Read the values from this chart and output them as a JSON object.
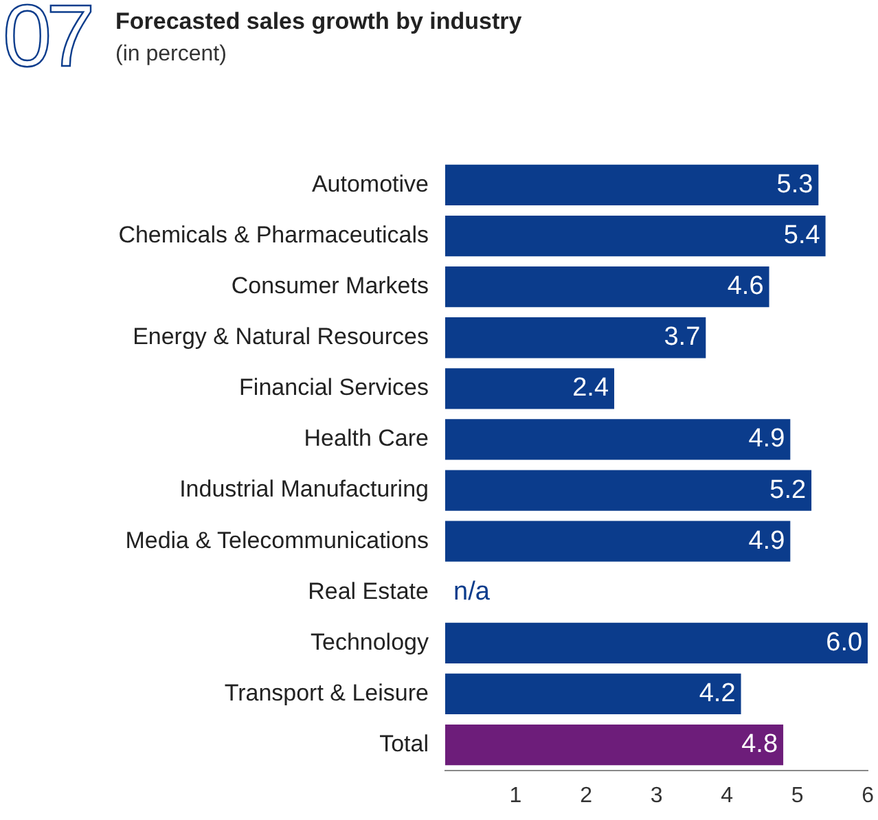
{
  "chart_data": {
    "type": "bar",
    "orientation": "horizontal",
    "title": "Forecasted sales growth by industry",
    "subtitle": "(in percent)",
    "annotations": [
      "07"
    ],
    "categories": [
      "Automotive",
      "Chemicals & Pharmaceuticals",
      "Consumer Markets",
      "Energy & Natural Resources",
      "Financial Services",
      "Health Care",
      "Industrial Manufacturing",
      "Media & Telecommunications",
      "Real Estate",
      "Technology",
      "Transport & Leisure",
      "Total"
    ],
    "values": [
      5.3,
      5.4,
      4.6,
      3.7,
      2.4,
      4.9,
      5.2,
      4.9,
      null,
      6.0,
      4.2,
      4.8
    ],
    "value_labels": [
      "5.3",
      "5.4",
      "4.6",
      "3.7",
      "2.4",
      "4.9",
      "5.2",
      "4.9",
      "n/a",
      "6.0",
      "4.2",
      "4.8"
    ],
    "colors": [
      "#0b3c8c",
      "#0b3c8c",
      "#0b3c8c",
      "#0b3c8c",
      "#0b3c8c",
      "#0b3c8c",
      "#0b3c8c",
      "#0b3c8c",
      "#0b3c8c",
      "#0b3c8c",
      "#0b3c8c",
      "#6d1d7a"
    ],
    "xlim": [
      0,
      6
    ],
    "xticks": [
      1,
      2,
      3,
      4,
      5,
      6
    ],
    "grid": false,
    "legend": false
  }
}
